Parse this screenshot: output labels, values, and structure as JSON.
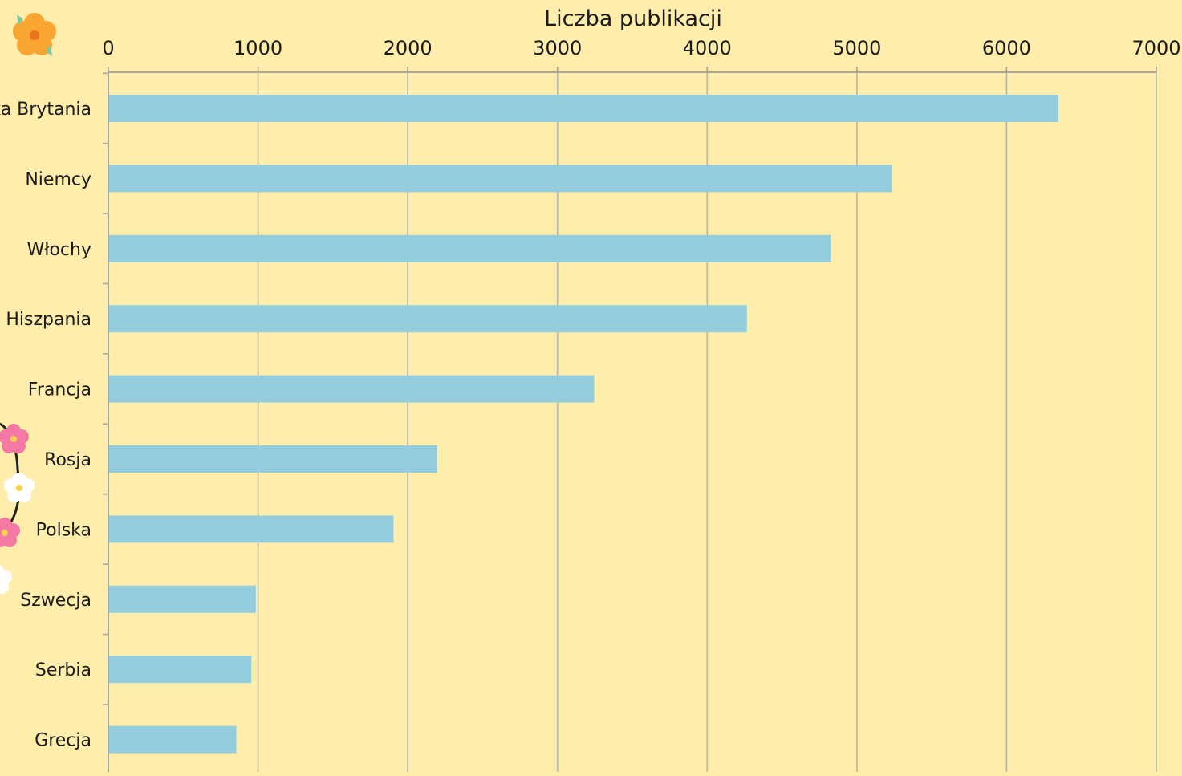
{
  "colors": {
    "background": "#FEEDAB",
    "bar": "#94CDDE",
    "grid": "#B8B6A8",
    "axis": "#A9A79A"
  },
  "decorations": {
    "top_left": "orange-flower-icon",
    "left_garland": "flower-garland-icons"
  },
  "chart_data": {
    "type": "bar",
    "orientation": "horizontal",
    "xlabel": "Liczba publikacji",
    "xlabel_position": "top",
    "xlim": [
      0,
      7000
    ],
    "xticks": [
      "0",
      "1000",
      "2000",
      "3000",
      "4000",
      "5000",
      "6000",
      "7000"
    ],
    "grid": true,
    "categories": [
      "Wielka Brytania",
      "Niemcy",
      "Włochy",
      "Hiszpania",
      "Francja",
      "Rosja",
      "Polska",
      "Szwecja",
      "Serbia",
      "Grecja"
    ],
    "values": [
      6340,
      5230,
      4820,
      4260,
      3240,
      2190,
      1900,
      980,
      950,
      850
    ]
  }
}
